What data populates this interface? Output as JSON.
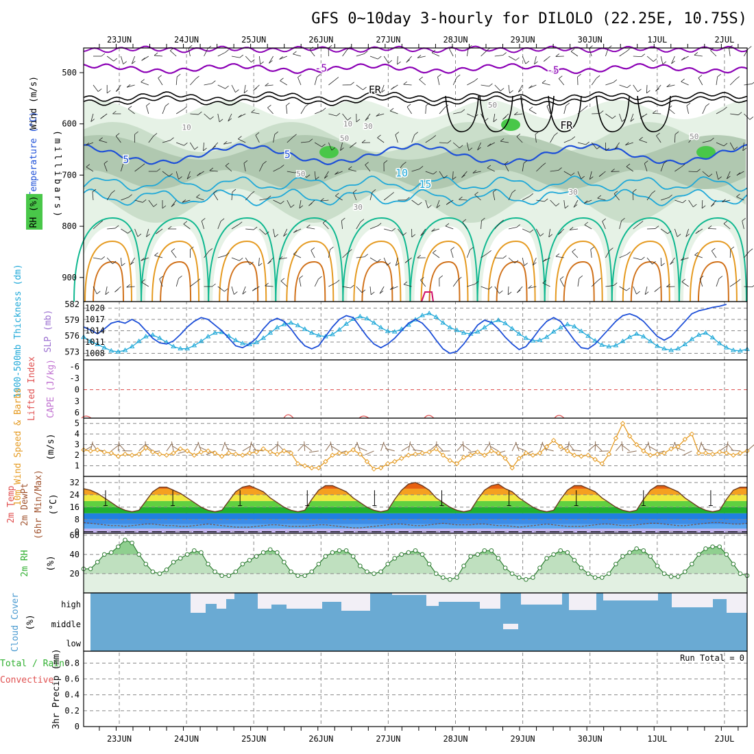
{
  "title": "GFS 0~10day 3-hourly for DILOLO (22.25E, 10.75S)",
  "dates": [
    "23JUN",
    "24JUN",
    "25JUN",
    "26JUN",
    "27JUN",
    "28JUN",
    "29JUN",
    "30JUN",
    "1JUL",
    "2JUL"
  ],
  "colors": {
    "purple": "#8b00b5",
    "black": "#000000",
    "blue": "#1d4fd8",
    "cyan": "#1ea8d8",
    "teal": "#10b890",
    "orange": "#e59a20",
    "darkorange": "#d07018",
    "magenta": "#d0106a",
    "green": "#49c749",
    "grid": "#888888",
    "cloud": "#6aaad3",
    "cape": "#e05050"
  },
  "panels": {
    "upper_air": {
      "ylabel": "(millibars)",
      "legend_wind": "Wind (m/s)",
      "legend_temp": "Temperature (°C)",
      "legend_rh": "RH (%)",
      "yticks": [
        500,
        600,
        700,
        800,
        900
      ],
      "contour_labels": [
        {
          "text": "-5",
          "x_day": 3.0,
          "p": 498,
          "color": "purple"
        },
        {
          "text": "-5",
          "x_day": 6.45,
          "p": 502,
          "color": "purple"
        },
        {
          "text": "FR",
          "x_day": 3.8,
          "p": 540,
          "color": "black"
        },
        {
          "text": "FR",
          "x_day": 6.65,
          "p": 610,
          "color": "black"
        },
        {
          "text": "5",
          "x_day": 0.1,
          "p": 677,
          "color": "blue"
        },
        {
          "text": "5",
          "x_day": 2.5,
          "p": 667,
          "color": "blue"
        },
        {
          "text": "10",
          "x_day": 4.2,
          "p": 703,
          "color": "cyan"
        },
        {
          "text": "15",
          "x_day": 4.55,
          "p": 725,
          "color": "cyan"
        },
        {
          "text": "50",
          "x_day": 5.55,
          "p": 568,
          "color": "grey"
        },
        {
          "text": "50",
          "x_day": 3.35,
          "p": 633,
          "color": "grey"
        },
        {
          "text": "50",
          "x_day": 2.7,
          "p": 703,
          "color": "grey"
        },
        {
          "text": "50",
          "x_day": 8.55,
          "p": 630,
          "color": "grey"
        },
        {
          "text": "30",
          "x_day": 6.75,
          "p": 738,
          "color": "grey"
        },
        {
          "text": "30",
          "x_day": 3.7,
          "p": 610,
          "color": "grey"
        },
        {
          "text": "30",
          "x_day": 3.55,
          "p": 768,
          "color": "grey"
        },
        {
          "text": "10",
          "x_day": 1.0,
          "p": 612,
          "color": "grey"
        },
        {
          "text": "10",
          "x_day": 3.4,
          "p": 605,
          "color": "grey"
        }
      ]
    },
    "thickness_slp": {
      "ylabel_left": "1000-500mb Thickness (dm)",
      "ylabel_right": "SLP (mb)",
      "left_ticks": [
        573,
        576,
        579,
        582
      ],
      "right_ticks": [
        1008,
        1011,
        1014,
        1017,
        1020
      ]
    },
    "cape_li": {
      "ylabel_left": "Lifted Index",
      "ylabel_right": "CAPE (J/kg)",
      "yticks": [
        "-6",
        "-3",
        "0",
        "3",
        "6"
      ]
    },
    "wind10m": {
      "ylabel": "10m Wind Speed & Barbs",
      "unit": "(m/s)",
      "yticks": [
        1,
        2,
        3,
        4,
        5
      ]
    },
    "temp2m": {
      "ylabel1": "2m Temp",
      "ylabel2": "2m DewPt",
      "ylabel3": "(6hr Min/Max)",
      "unit": "(°C)",
      "yticks": [
        0,
        8,
        16,
        24,
        32
      ]
    },
    "rh2m": {
      "ylabel": "2m RH",
      "unit": "(%)",
      "yticks": [
        20,
        40,
        60
      ]
    },
    "cloud": {
      "ylabel": "Cloud Cover",
      "unit": "(%)",
      "levels": [
        "high",
        "middle",
        "low"
      ]
    },
    "precip": {
      "ylabel_left1": "Total / Rain",
      "ylabel_left2": "Convective",
      "ylabel": "3hr Precip (mm)",
      "yticks": [
        "0",
        "0.2",
        "0.4",
        "0.6",
        "0.8"
      ],
      "run_total": "Run Total = 0"
    }
  },
  "chart_data": [
    {
      "type": "line",
      "title": "1000-500mb Thickness (dm) / SLP (mb)",
      "x_unit": "days from 22 Jun 12Z (3-hourly)",
      "series": [
        {
          "name": "1000-500mb Thickness (dm)",
          "axis": "left",
          "values": [
            575.8,
            575.0,
            574.4,
            573.8,
            573.2,
            573.0,
            573.3,
            574.0,
            575.0,
            575.9,
            576.2,
            575.6,
            574.8,
            574.0,
            573.6,
            573.6,
            574.2,
            575.0,
            575.9,
            576.6,
            576.7,
            576.0,
            575.2,
            574.6,
            574.4,
            574.8,
            575.6,
            576.6,
            577.6,
            578.2,
            578.5,
            578.0,
            577.3,
            576.6,
            576.1,
            575.9,
            576.3,
            577.2,
            578.3,
            579.2,
            579.7,
            579.3,
            578.5,
            577.6,
            576.9,
            576.8,
            577.3,
            578.1,
            579.1,
            579.9,
            580.3,
            579.6,
            578.5,
            577.6,
            577.1,
            576.6,
            576.4,
            576.8,
            577.6,
            578.5,
            579.0,
            578.4,
            577.4,
            576.4,
            575.6,
            575.1,
            575.2,
            575.8,
            576.8,
            577.6,
            578.2,
            577.8,
            576.9,
            576.0,
            575.1,
            574.3,
            574.0,
            574.2,
            575.0,
            575.8,
            576.4,
            575.9,
            575.0,
            574.1,
            573.6,
            573.3,
            573.6,
            574.4,
            575.4,
            576.2,
            576.6,
            575.7,
            574.6,
            573.8,
            573.3,
            573.2,
            573.5
          ]
        },
        {
          "name": "SLP (mb)",
          "axis": "right",
          "values": [
            1015.0,
            1014.2,
            1013.2,
            1014.5,
            1016.0,
            1016.5,
            1016.0,
            1017.0,
            1016.0,
            1014.0,
            1012.0,
            1010.8,
            1010.5,
            1011.3,
            1013.0,
            1015.0,
            1016.5,
            1017.5,
            1017.0,
            1015.5,
            1014.0,
            1012.0,
            1010.0,
            1009.5,
            1010.5,
            1012.0,
            1014.5,
            1016.5,
            1017.3,
            1016.5,
            1014.5,
            1012.0,
            1010.0,
            1009.2,
            1010.0,
            1012.5,
            1015.0,
            1017.0,
            1018.0,
            1017.5,
            1015.0,
            1012.5,
            1010.5,
            1009.5,
            1010.5,
            1012.0,
            1014.0,
            1016.0,
            1017.0,
            1016.0,
            1014.0,
            1011.5,
            1009.2,
            1008.0,
            1008.5,
            1010.5,
            1013.0,
            1015.5,
            1016.8,
            1016.2,
            1014.5,
            1012.3,
            1010.5,
            1009.0,
            1009.8,
            1012.0,
            1014.5,
            1016.5,
            1017.5,
            1016.5,
            1014.0,
            1011.5,
            1009.5,
            1009.2,
            1010.5,
            1012.5,
            1014.5,
            1016.5,
            1018.0,
            1018.5,
            1017.8,
            1016.5,
            1014.5,
            1012.5,
            1011.5,
            1012.5,
            1014.5,
            1016.5,
            1018.5,
            1019.3,
            1019.7,
            1020.2,
            1020.5,
            1021.0
          ]
        }
      ],
      "ylim_left": [
        572,
        582
      ],
      "ylim_right": [
        1007,
        1021
      ]
    },
    {
      "type": "line",
      "title": "10m Wind Speed & Barbs (m/s)",
      "series": [
        {
          "name": "10m Wind Speed",
          "values": [
            2.5,
            2.4,
            2.5,
            2.3,
            2.2,
            1.9,
            2.1,
            2.0,
            2.1,
            2.7,
            2.3,
            2.1,
            2.0,
            2.2,
            2.6,
            2.4,
            2.0,
            2.3,
            2.4,
            2.2,
            1.9,
            2.2,
            2.1,
            2.0,
            2.2,
            2.3,
            2.6,
            2.3,
            2.1,
            2.4,
            2.2,
            1.2,
            1.0,
            0.8,
            0.8,
            1.4,
            2.0,
            2.2,
            2.2,
            2.5,
            2.1,
            1.4,
            0.7,
            0.8,
            1.2,
            1.4,
            1.7,
            2.0,
            2.1,
            2.2,
            2.3,
            2.6,
            2.0,
            1.5,
            1.2,
            1.8,
            2.0,
            2.3,
            2.0,
            2.4,
            2.2,
            1.7,
            0.8,
            1.7,
            2.2,
            2.0,
            2.2,
            2.8,
            3.4,
            2.8,
            2.4,
            2.0,
            1.9,
            2.0,
            1.6,
            1.2,
            2.1,
            3.6,
            5.0,
            3.8,
            3.0,
            2.4,
            2.0,
            2.1,
            2.2,
            2.6,
            2.8,
            3.5,
            4.0,
            2.2,
            2.2,
            2.1,
            2.3,
            2.2,
            2.0,
            2.2,
            2.4
          ]
        }
      ],
      "ylim": [
        0,
        5.5
      ]
    },
    {
      "type": "area",
      "title": "2m Temp / 2m DewPt (°C)",
      "series": [
        {
          "name": "2m Temp",
          "values": [
            28,
            27,
            25,
            22,
            19,
            16,
            14,
            13,
            14,
            20,
            26,
            29,
            29,
            27,
            25,
            22,
            19,
            16,
            14,
            13,
            14,
            20,
            26,
            29,
            30,
            28,
            26,
            22,
            19,
            16,
            14,
            13,
            14,
            21,
            27,
            30,
            30,
            28,
            26,
            22,
            19,
            16,
            14,
            13,
            14,
            21,
            27,
            31,
            32,
            30,
            27,
            22,
            19,
            16,
            14,
            13,
            14,
            21,
            27,
            30,
            31,
            28,
            26,
            22,
            19,
            16,
            14,
            13,
            14,
            21,
            27,
            30,
            30,
            28,
            26,
            22,
            19,
            16,
            14,
            13,
            14,
            21,
            27,
            30,
            30,
            28,
            26,
            22,
            19,
            16,
            14,
            13,
            14,
            21,
            27,
            29,
            29,
            27,
            25,
            21,
            18,
            15,
            14,
            13
          ]
        },
        {
          "name": "2m DewPt",
          "values": [
            6,
            5.5,
            5,
            4.5,
            4,
            4,
            3.5,
            4,
            4.5,
            5,
            5,
            4.5,
            4,
            4,
            3.5,
            3.5,
            4,
            4.5,
            5,
            4.5,
            4,
            3.5,
            3,
            3,
            3,
            3.5,
            4,
            4.5,
            4.5,
            4,
            3.5,
            3.5,
            3.5,
            4,
            4.5,
            4.5,
            4,
            3.5,
            3,
            2.5,
            2.5,
            3,
            3.5,
            4,
            4.5,
            5,
            5,
            4.5,
            4,
            4,
            4.5,
            5,
            5.5,
            5,
            4.5,
            4.5,
            4.5,
            5,
            5,
            4.5,
            4,
            4,
            3.5,
            3,
            3.5,
            4,
            4.5,
            5,
            4.5,
            4,
            3.5,
            3.5,
            3.5,
            4,
            4.5,
            5,
            5,
            4.5,
            4,
            4,
            4.5,
            5,
            5.5,
            5.5,
            5,
            4.5,
            4,
            4,
            4.5,
            5,
            5.5,
            6,
            6,
            5.5,
            5,
            5,
            5.5,
            6,
            6.5
          ]
        }
      ],
      "ylim": [
        -1,
        36
      ]
    },
    {
      "type": "area",
      "title": "2m RH (%)",
      "series": [
        {
          "name": "2m RH",
          "values": [
            25,
            25,
            32,
            40,
            42,
            48,
            55,
            52,
            40,
            30,
            22,
            20,
            24,
            32,
            36,
            40,
            44,
            42,
            30,
            22,
            18,
            18,
            22,
            30,
            34,
            38,
            42,
            45,
            42,
            32,
            22,
            18,
            18,
            22,
            30,
            38,
            42,
            44,
            44,
            38,
            28,
            22,
            20,
            22,
            30,
            36,
            40,
            42,
            44,
            40,
            30,
            20,
            16,
            14,
            16,
            28,
            38,
            40,
            44,
            44,
            36,
            26,
            20,
            16,
            14,
            16,
            26,
            36,
            40,
            44,
            42,
            34,
            26,
            20,
            16,
            16,
            20,
            30,
            38,
            42,
            46,
            44,
            38,
            28,
            20,
            17,
            17,
            22,
            30,
            40,
            46,
            48,
            48,
            40,
            30,
            20,
            18,
            18,
            24,
            34,
            44,
            52,
            58,
            52
          ]
        }
      ],
      "ylim": [
        0,
        62
      ]
    }
  ]
}
